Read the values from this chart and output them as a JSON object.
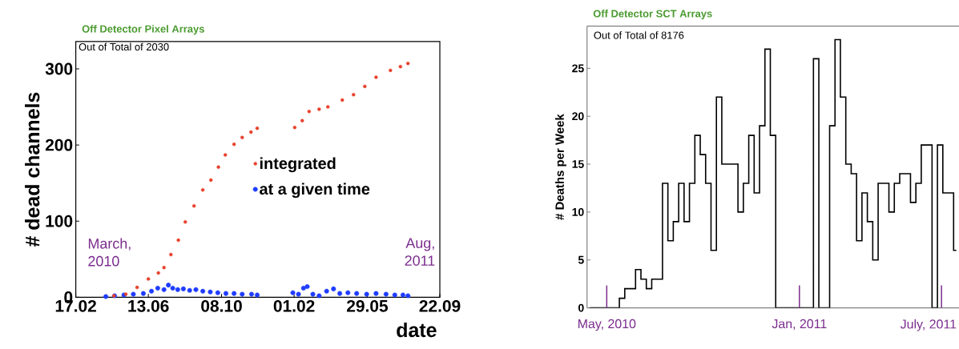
{
  "chart_data": [
    {
      "type": "scatter",
      "title": "Off Detector Pixel Arrays",
      "xlabel": "date",
      "ylabel": "# dead channels",
      "annotations": [
        "Out of Total of 2030",
        "March, 2010",
        "Aug, 2011"
      ],
      "xlim": [
        "2010-02-17",
        "2011-09-22"
      ],
      "xticks": [
        {
          "value": "2010-02-17",
          "label": "17.02"
        },
        {
          "value": "2010-06-13",
          "label": "13.06"
        },
        {
          "value": "2010-10-08",
          "label": "08.10"
        },
        {
          "value": "2011-02-01",
          "label": "01.02"
        },
        {
          "value": "2011-05-29",
          "label": "29.05"
        },
        {
          "value": "2011-09-22",
          "label": "22.09"
        }
      ],
      "ylim": [
        0,
        336
      ],
      "yticks": [
        0,
        100,
        200,
        300
      ],
      "legend": "center",
      "series": [
        {
          "name": "integrated",
          "color": "#e8412c",
          "x": [
            "2010-04-19",
            "2010-05-08",
            "2010-05-26",
            "2010-06-13",
            "2010-06-29",
            "2010-07-08",
            "2010-07-19",
            "2010-07-31",
            "2010-08-11",
            "2010-08-25",
            "2010-09-08",
            "2010-09-21",
            "2010-10-03",
            "2010-10-14",
            "2010-10-28",
            "2010-11-10",
            "2010-11-24",
            "2010-12-04",
            "2011-02-02",
            "2011-02-14",
            "2011-02-25",
            "2011-03-13",
            "2011-03-27",
            "2011-04-19",
            "2011-05-07",
            "2011-05-25",
            "2011-06-12",
            "2011-07-05",
            "2011-07-21",
            "2011-08-02"
          ],
          "values": [
            2,
            4,
            13,
            24,
            32,
            39,
            56,
            75,
            99,
            120,
            141,
            154,
            171,
            187,
            201,
            210,
            217,
            222,
            223,
            232,
            244,
            247,
            250,
            259,
            266,
            277,
            289,
            298,
            303,
            307
          ]
        },
        {
          "name": "at a given time",
          "color": "#1f3cff",
          "x": [
            "2010-04-06",
            "2010-04-20",
            "2010-05-05",
            "2010-05-20",
            "2010-06-05",
            "2010-06-18",
            "2010-06-28",
            "2010-07-08",
            "2010-07-15",
            "2010-07-22",
            "2010-07-30",
            "2010-08-08",
            "2010-08-18",
            "2010-08-28",
            "2010-09-08",
            "2010-09-20",
            "2010-10-02",
            "2010-10-15",
            "2010-10-28",
            "2010-11-10",
            "2010-11-25",
            "2010-12-04",
            "2011-01-30",
            "2011-02-08",
            "2011-02-16",
            "2011-02-22",
            "2011-03-03",
            "2011-03-13",
            "2011-03-25",
            "2011-04-05",
            "2011-04-15",
            "2011-04-28",
            "2011-05-12",
            "2011-05-28",
            "2011-06-12",
            "2011-06-28",
            "2011-07-12",
            "2011-07-25",
            "2011-08-02"
          ],
          "values": [
            1,
            2,
            3,
            4,
            5,
            8,
            12,
            10,
            16,
            12,
            10,
            11,
            9,
            10,
            8,
            7,
            6,
            5,
            5,
            4,
            4,
            3,
            6,
            4,
            12,
            14,
            4,
            2,
            8,
            11,
            5,
            6,
            5,
            4,
            5,
            4,
            3,
            3,
            2
          ]
        }
      ]
    },
    {
      "type": "step",
      "title": "Off Detector SCT Arrays",
      "ylabel": "# Deaths per Week",
      "annotations": [
        "Out of Total of 8176",
        "May, 2010",
        "Jan, 2011",
        "July, 2011"
      ],
      "categories": [
        null,
        null,
        null,
        null,
        null,
        null,
        null,
        null,
        null,
        null,
        null,
        null,
        null,
        null,
        null,
        null,
        null,
        null,
        null,
        null,
        null,
        null,
        null,
        null,
        null,
        null,
        null,
        null,
        null,
        null,
        null,
        null,
        null,
        null,
        null,
        null,
        null,
        null,
        null,
        null,
        null,
        null,
        null,
        null,
        null,
        null,
        null,
        null,
        null,
        null,
        null,
        null,
        null,
        null,
        null,
        null,
        null,
        null,
        null,
        null,
        null,
        null,
        null,
        null,
        null,
        null,
        null,
        null,
        null
      ],
      "values": [
        0,
        0,
        0,
        0,
        0,
        0,
        1,
        2,
        2,
        4,
        3,
        2,
        3,
        3,
        13,
        7,
        9,
        13,
        9,
        13,
        18,
        16,
        13,
        6,
        22,
        15,
        15,
        15,
        10,
        13,
        18,
        12,
        19,
        27,
        18,
        0,
        0,
        0,
        0,
        0,
        0,
        0,
        26,
        0,
        0,
        19,
        28,
        22,
        15,
        14,
        7,
        12,
        9,
        5,
        13,
        13,
        10,
        13,
        14,
        14,
        11,
        13,
        17,
        17,
        0,
        17,
        12,
        12,
        6
      ],
      "color": "#000000",
      "ylim": [
        0,
        29.4
      ],
      "yticks": [
        0,
        5,
        10,
        15,
        20,
        25
      ],
      "tick_labels": "y"
    }
  ]
}
